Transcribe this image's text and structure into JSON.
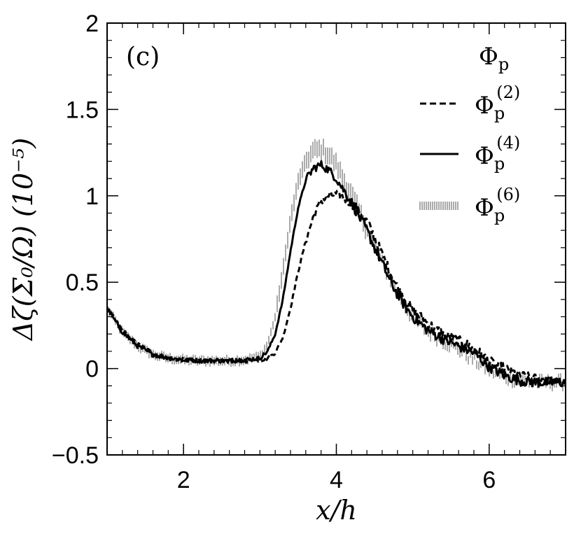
{
  "chart_data": {
    "type": "line",
    "panel_label": "(c)",
    "xlabel": "x/h",
    "ylabel": "Δζ(Σ₀/Ω) (10⁻⁵)",
    "xlim": [
      1,
      7
    ],
    "ylim": [
      -0.5,
      2
    ],
    "xticks": [
      2,
      4,
      6
    ],
    "xtick_labels": [
      "2",
      "4",
      "6"
    ],
    "yticks": [
      -0.5,
      0,
      0.5,
      1,
      1.5,
      2
    ],
    "ytick_labels": [
      "−0.5",
      "0",
      "0.5",
      "1",
      "1.5",
      "2"
    ],
    "legend": {
      "title": {
        "base": "Φ",
        "sub": "p"
      },
      "entries": [
        {
          "base": "Φ",
          "sub": "p",
          "sup": "(2)",
          "style": "dashed"
        },
        {
          "base": "Φ",
          "sub": "p",
          "sup": "(4)",
          "style": "solid"
        },
        {
          "base": "Φ",
          "sub": "p",
          "sup": "(6)",
          "style": "hatched"
        }
      ]
    },
    "series": [
      {
        "name": "Φp(2)",
        "style": "dashed",
        "x": [
          1.0,
          1.2,
          1.4,
          1.6,
          1.8,
          2.0,
          2.2,
          2.4,
          2.6,
          2.8,
          3.0,
          3.1,
          3.2,
          3.3,
          3.4,
          3.5,
          3.6,
          3.7,
          3.8,
          3.9,
          4.0,
          4.1,
          4.2,
          4.3,
          4.4,
          4.5,
          4.6,
          4.7,
          4.8,
          4.9,
          5.0,
          5.2,
          5.4,
          5.6,
          5.8,
          6.0,
          6.2,
          6.4,
          6.6,
          6.8,
          7.0
        ],
        "y": [
          0.35,
          0.22,
          0.14,
          0.09,
          0.06,
          0.05,
          0.045,
          0.045,
          0.045,
          0.045,
          0.05,
          0.06,
          0.09,
          0.18,
          0.35,
          0.56,
          0.74,
          0.88,
          0.97,
          1.0,
          1.01,
          0.99,
          0.96,
          0.91,
          0.85,
          0.76,
          0.66,
          0.56,
          0.47,
          0.4,
          0.34,
          0.26,
          0.2,
          0.16,
          0.12,
          0.04,
          0.0,
          -0.04,
          -0.06,
          -0.07,
          -0.08
        ]
      },
      {
        "name": "Φp(4)",
        "style": "solid",
        "x": [
          1.0,
          1.2,
          1.4,
          1.6,
          1.8,
          2.0,
          2.2,
          2.4,
          2.6,
          2.8,
          3.0,
          3.1,
          3.2,
          3.3,
          3.4,
          3.5,
          3.6,
          3.7,
          3.8,
          3.9,
          4.0,
          4.1,
          4.2,
          4.3,
          4.4,
          4.5,
          4.6,
          4.7,
          4.8,
          4.9,
          5.0,
          5.2,
          5.4,
          5.6,
          5.8,
          6.0,
          6.2,
          6.4,
          6.6,
          6.8,
          7.0
        ],
        "y": [
          0.35,
          0.21,
          0.13,
          0.08,
          0.06,
          0.05,
          0.045,
          0.045,
          0.045,
          0.05,
          0.06,
          0.1,
          0.2,
          0.4,
          0.68,
          0.93,
          1.09,
          1.16,
          1.18,
          1.15,
          1.1,
          1.03,
          0.96,
          0.88,
          0.8,
          0.7,
          0.61,
          0.51,
          0.43,
          0.36,
          0.3,
          0.22,
          0.17,
          0.13,
          0.09,
          0.01,
          -0.04,
          -0.07,
          -0.08,
          -0.08,
          -0.08
        ]
      },
      {
        "name": "Φp(6)",
        "style": "hatched",
        "x": [
          1.0,
          1.2,
          1.4,
          1.6,
          1.8,
          2.0,
          2.2,
          2.4,
          2.6,
          2.8,
          3.0,
          3.1,
          3.2,
          3.3,
          3.4,
          3.5,
          3.6,
          3.7,
          3.8,
          3.9,
          4.0,
          4.1,
          4.2,
          4.3,
          4.4,
          4.5,
          4.6,
          4.7,
          4.8,
          4.9,
          5.0,
          5.2,
          5.4,
          5.6,
          5.8,
          6.0,
          6.2,
          6.4,
          6.6,
          6.8,
          7.0
        ],
        "y": [
          0.35,
          0.21,
          0.13,
          0.08,
          0.06,
          0.05,
          0.045,
          0.045,
          0.045,
          0.05,
          0.07,
          0.14,
          0.3,
          0.56,
          0.86,
          1.08,
          1.2,
          1.26,
          1.27,
          1.24,
          1.18,
          1.09,
          1.0,
          0.9,
          0.81,
          0.7,
          0.61,
          0.52,
          0.44,
          0.36,
          0.29,
          0.21,
          0.16,
          0.11,
          0.05,
          -0.01,
          -0.05,
          -0.07,
          -0.08,
          -0.08,
          -0.08
        ]
      }
    ]
  }
}
